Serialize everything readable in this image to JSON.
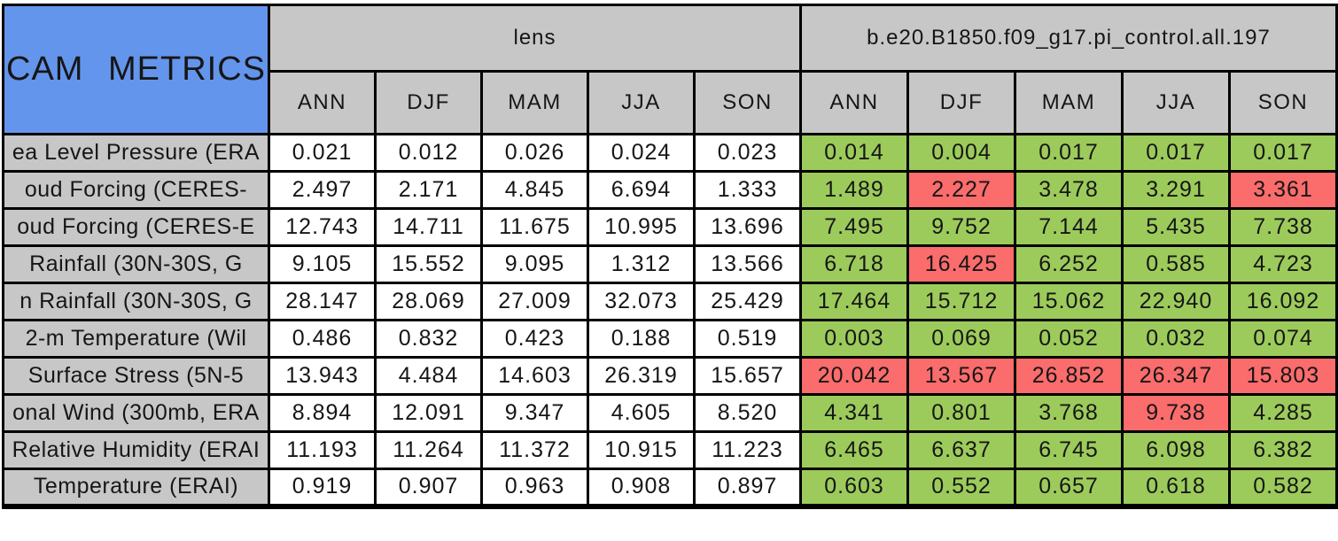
{
  "colors": {
    "title_background_blue": "#6495ec",
    "header_gray": "#c7c7c7",
    "better_green": "#9ccb5b",
    "worse_red": "#fb6c6c",
    "border_black": "#000000",
    "cell_white": "#ffffff",
    "page_background": "#ffffff"
  },
  "chart_data": {
    "type": "table",
    "title": "CAM METRICS",
    "groups": [
      {
        "label": "lens",
        "columns": [
          "ANN",
          "DJF",
          "MAM",
          "JJA",
          "SON"
        ]
      },
      {
        "label": "b.e20.B1850.f09_g17.pi_control.all.197",
        "columns": [
          "ANN",
          "DJF",
          "MAM",
          "JJA",
          "SON"
        ]
      }
    ],
    "highlight_legend": {
      "green": "control value highlighted green",
      "red": "control value highlighted red"
    },
    "rows": [
      {
        "label": "ea Level Pressure (ERA",
        "lens": [
          "0.021",
          "0.012",
          "0.026",
          "0.024",
          "0.023"
        ],
        "control": [
          "0.014",
          "0.004",
          "0.017",
          "0.017",
          "0.017"
        ],
        "control_flags": [
          "green",
          "green",
          "green",
          "green",
          "green"
        ]
      },
      {
        "label": "oud Forcing (CERES-",
        "lens": [
          "2.497",
          "2.171",
          "4.845",
          "6.694",
          "1.333"
        ],
        "control": [
          "1.489",
          "2.227",
          "3.478",
          "3.291",
          "3.361"
        ],
        "control_flags": [
          "green",
          "red",
          "green",
          "green",
          "red"
        ]
      },
      {
        "label": "oud Forcing (CERES-E",
        "lens": [
          "12.743",
          "14.711",
          "11.675",
          "10.995",
          "13.696"
        ],
        "control": [
          "7.495",
          "9.752",
          "7.144",
          "5.435",
          "7.738"
        ],
        "control_flags": [
          "green",
          "green",
          "green",
          "green",
          "green"
        ]
      },
      {
        "label": "Rainfall (30N-30S, G",
        "lens": [
          "9.105",
          "15.552",
          "9.095",
          "1.312",
          "13.566"
        ],
        "control": [
          "6.718",
          "16.425",
          "6.252",
          "0.585",
          "4.723"
        ],
        "control_flags": [
          "green",
          "red",
          "green",
          "green",
          "green"
        ]
      },
      {
        "label": "n Rainfall (30N-30S, G",
        "lens": [
          "28.147",
          "28.069",
          "27.009",
          "32.073",
          "25.429"
        ],
        "control": [
          "17.464",
          "15.712",
          "15.062",
          "22.940",
          "16.092"
        ],
        "control_flags": [
          "green",
          "green",
          "green",
          "green",
          "green"
        ]
      },
      {
        "label": "2-m Temperature (Wil",
        "lens": [
          "0.486",
          "0.832",
          "0.423",
          "0.188",
          "0.519"
        ],
        "control": [
          "0.003",
          "0.069",
          "0.052",
          "0.032",
          "0.074"
        ],
        "control_flags": [
          "green",
          "green",
          "green",
          "green",
          "green"
        ]
      },
      {
        "label": "Surface Stress (5N-5",
        "lens": [
          "13.943",
          "4.484",
          "14.603",
          "26.319",
          "15.657"
        ],
        "control": [
          "20.042",
          "13.567",
          "26.852",
          "26.347",
          "15.803"
        ],
        "control_flags": [
          "red",
          "red",
          "red",
          "red",
          "red"
        ]
      },
      {
        "label": "onal Wind (300mb, ERA",
        "lens": [
          "8.894",
          "12.091",
          "9.347",
          "4.605",
          "8.520"
        ],
        "control": [
          "4.341",
          "0.801",
          "3.768",
          "9.738",
          "4.285"
        ],
        "control_flags": [
          "green",
          "green",
          "green",
          "red",
          "green"
        ]
      },
      {
        "label": "Relative Humidity (ERAI",
        "lens": [
          "11.193",
          "11.264",
          "11.372",
          "10.915",
          "11.223"
        ],
        "control": [
          "6.465",
          "6.637",
          "6.745",
          "6.098",
          "6.382"
        ],
        "control_flags": [
          "green",
          "green",
          "green",
          "green",
          "green"
        ]
      },
      {
        "label": "Temperature (ERAI)",
        "lens": [
          "0.919",
          "0.907",
          "0.963",
          "0.908",
          "0.897"
        ],
        "control": [
          "0.603",
          "0.552",
          "0.657",
          "0.618",
          "0.582"
        ],
        "control_flags": [
          "green",
          "green",
          "green",
          "green",
          "green"
        ]
      }
    ]
  }
}
